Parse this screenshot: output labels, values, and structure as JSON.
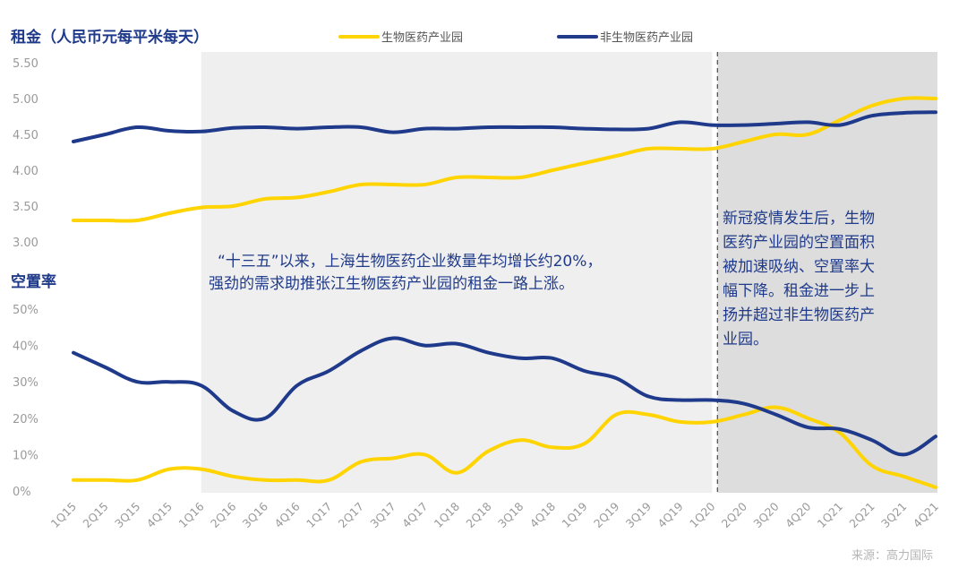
{
  "chart_data": {
    "type": "line",
    "categories": [
      "1Q15",
      "2Q15",
      "3Q15",
      "4Q15",
      "1Q16",
      "2Q16",
      "3Q16",
      "4Q16",
      "1Q17",
      "2Q17",
      "3Q17",
      "4Q17",
      "1Q18",
      "2Q18",
      "3Q18",
      "4Q18",
      "1Q19",
      "2Q19",
      "3Q19",
      "4Q19",
      "1Q20",
      "2Q20",
      "3Q20",
      "4Q20",
      "1Q21",
      "2Q21",
      "3Q21",
      "4Q21"
    ],
    "legend": [
      {
        "name": "生物医药产业园",
        "color": "#FFD400"
      },
      {
        "name": "非生物医药产业园",
        "color": "#1F3A8A"
      }
    ],
    "rent_panel": {
      "title": "租金（人民币元每平米每天）",
      "ylim": [
        3.0,
        5.5
      ],
      "yticks": [
        "5.50",
        "5.00",
        "4.50",
        "4.00",
        "3.50",
        "3.00"
      ],
      "series": [
        {
          "name": "生物医药产业园",
          "color": "#FFD400",
          "values": [
            3.3,
            3.3,
            3.3,
            3.4,
            3.48,
            3.5,
            3.6,
            3.62,
            3.7,
            3.8,
            3.8,
            3.8,
            3.9,
            3.9,
            3.9,
            4.0,
            4.1,
            4.2,
            4.3,
            4.3,
            4.3,
            4.4,
            4.5,
            4.5,
            4.7,
            4.9,
            5.0,
            5.0
          ]
        },
        {
          "name": "非生物医药产业园",
          "color": "#1F3A8A",
          "values": [
            4.4,
            4.5,
            4.6,
            4.55,
            4.54,
            4.59,
            4.6,
            4.58,
            4.6,
            4.6,
            4.53,
            4.58,
            4.58,
            4.6,
            4.6,
            4.6,
            4.58,
            4.57,
            4.58,
            4.67,
            4.63,
            4.63,
            4.65,
            4.67,
            4.63,
            4.76,
            4.8,
            4.81
          ]
        }
      ]
    },
    "vacancy_panel": {
      "title": "空置率",
      "ylim": [
        0,
        50
      ],
      "yticks": [
        "50%",
        "40%",
        "30%",
        "20%",
        "10%",
        "0%"
      ],
      "series": [
        {
          "name": "生物医药产业园",
          "color": "#FFD400",
          "values": [
            3,
            3,
            3,
            6,
            6,
            4,
            3,
            3,
            3,
            8,
            9,
            10,
            5,
            11,
            14,
            12,
            13,
            21,
            21,
            19,
            19,
            21,
            23,
            20,
            16,
            7,
            4,
            1
          ]
        },
        {
          "name": "非生物医药产业园",
          "color": "#1F3A8A",
          "values": [
            38,
            34,
            30,
            30,
            29,
            22,
            20,
            29,
            33,
            38.5,
            42,
            40,
            40.5,
            38,
            36.5,
            36.5,
            33,
            31,
            26,
            25,
            25,
            24,
            21,
            17.5,
            17,
            14,
            10,
            15
          ]
        }
      ]
    },
    "shaded_ranges": [
      {
        "from": "1Q16",
        "to": "1Q20",
        "color": "#efefef"
      },
      {
        "from": "1Q20",
        "to": "4Q21",
        "color": "#dddddd"
      }
    ],
    "divider_at": "1Q20",
    "annotations": {
      "left_line1": "“十三五”以来，上海生物医药企业数量年均增长约20%，",
      "left_line2": "强劲的需求助推张江生物医药产业园的租金一路上涨。",
      "right_lines": [
        "新冠疫情发生后，生物",
        "医药产业园的空置面积",
        "被加速吸纳、空置率大",
        "幅下降。租金进一步上",
        "扬并超过非生物医药产",
        "业园。"
      ]
    },
    "source": "来源：高力国际"
  }
}
